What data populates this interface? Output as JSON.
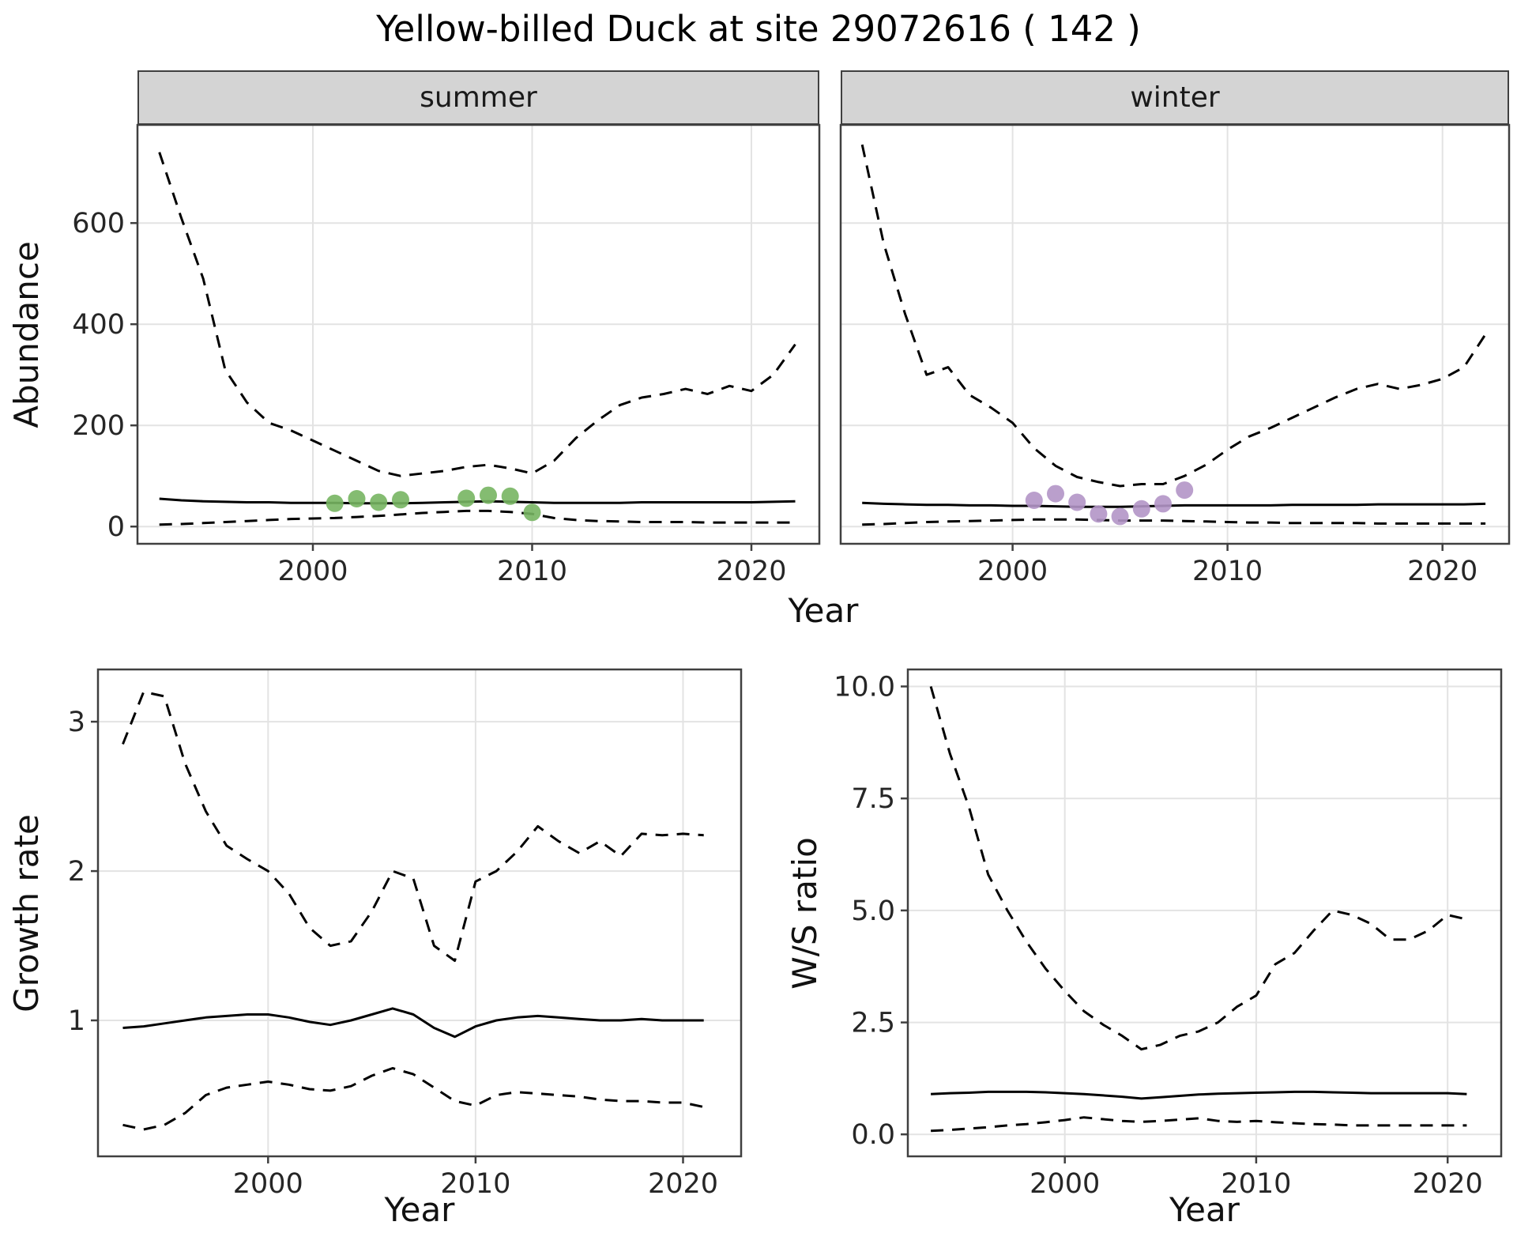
{
  "title": "Yellow-billed Duck at site 29072616 ( 142 )",
  "top": {
    "y_label": "Abundance",
    "x_label": "Year",
    "facets": [
      {
        "label": "summer"
      },
      {
        "label": "winter"
      }
    ]
  },
  "bottom_left": {
    "y_label": "Growth rate",
    "x_label": "Year"
  },
  "bottom_right": {
    "y_label": "W/S ratio",
    "x_label": "Year"
  },
  "colors": {
    "line": "#000000",
    "grid": "#e3e3e3",
    "panel_border": "#404040",
    "strip_bg": "#d4d4d4",
    "text": "#262626",
    "summer_points": "#77b562",
    "winter_points": "#b295c7"
  },
  "chart_data": [
    {
      "id": "abundance-summer",
      "type": "line",
      "facet": "summer",
      "title": "",
      "xlabel": "Year",
      "ylabel": "Abundance",
      "xlim": [
        1992,
        2023.1
      ],
      "ylim": [
        -34,
        794
      ],
      "grid": true,
      "x_ticks": [
        2000,
        2010,
        2020
      ],
      "x_tick_labels": [
        "2000",
        "2010",
        "2020"
      ],
      "y_ticks": [
        0,
        200,
        400,
        600
      ],
      "y_tick_labels": [
        "0",
        "200",
        "400",
        "600"
      ],
      "x": [
        1993,
        1994,
        1995,
        1996,
        1997,
        1998,
        1999,
        2000,
        2001,
        2002,
        2003,
        2004,
        2005,
        2006,
        2007,
        2008,
        2009,
        2010,
        2011,
        2012,
        2013,
        2014,
        2015,
        2016,
        2017,
        2018,
        2019,
        2020,
        2021,
        2022
      ],
      "series": [
        {
          "name": "upper-ci",
          "style": "dashed",
          "values": [
            740,
            610,
            490,
            310,
            245,
            205,
            190,
            170,
            150,
            130,
            110,
            100,
            105,
            110,
            118,
            122,
            115,
            105,
            130,
            175,
            210,
            240,
            255,
            262,
            272,
            262,
            278,
            268,
            300,
            360
          ]
        },
        {
          "name": "median",
          "style": "solid",
          "values": [
            55,
            52,
            50,
            49,
            48,
            48,
            47,
            47,
            47,
            46,
            46,
            46,
            47,
            48,
            49,
            50,
            49,
            48,
            47,
            47,
            47,
            47,
            48,
            48,
            48,
            48,
            48,
            48,
            49,
            50
          ]
        },
        {
          "name": "lower-ci",
          "style": "dashed",
          "values": [
            4,
            5,
            7,
            9,
            11,
            13,
            15,
            16,
            17,
            19,
            21,
            24,
            27,
            29,
            31,
            31,
            29,
            25,
            17,
            13,
            11,
            10,
            9,
            9,
            9,
            8,
            8,
            8,
            8,
            8
          ]
        }
      ],
      "points": {
        "name": "summer-count",
        "color": "#77b562",
        "x": [
          2001,
          2002,
          2003,
          2004,
          2007,
          2008,
          2009,
          2010
        ],
        "y": [
          46,
          55,
          48,
          53,
          56,
          62,
          60,
          28
        ]
      }
    },
    {
      "id": "abundance-winter",
      "type": "line",
      "facet": "winter",
      "title": "",
      "xlabel": "Year",
      "ylabel": "Abundance",
      "xlim": [
        1992,
        2023.1
      ],
      "ylim": [
        -34,
        794
      ],
      "grid": true,
      "x_ticks": [
        2000,
        2010,
        2020
      ],
      "x_tick_labels": [
        "2000",
        "2010",
        "2020"
      ],
      "y_ticks": [
        0,
        200,
        400,
        600
      ],
      "y_tick_labels": [
        "0",
        "200",
        "400",
        "600"
      ],
      "x": [
        1993,
        1994,
        1995,
        1996,
        1997,
        1998,
        1999,
        2000,
        2001,
        2002,
        2003,
        2004,
        2005,
        2006,
        2007,
        2008,
        2009,
        2010,
        2011,
        2012,
        2013,
        2014,
        2015,
        2016,
        2017,
        2018,
        2019,
        2020,
        2021,
        2022
      ],
      "series": [
        {
          "name": "upper-ci",
          "style": "dashed",
          "values": [
            755,
            560,
            420,
            300,
            315,
            260,
            235,
            205,
            155,
            120,
            98,
            88,
            80,
            84,
            84,
            100,
            122,
            152,
            178,
            195,
            215,
            235,
            255,
            272,
            282,
            272,
            280,
            292,
            315,
            380
          ]
        },
        {
          "name": "median",
          "style": "solid",
          "values": [
            47,
            45,
            44,
            43,
            43,
            42,
            42,
            41,
            41,
            40,
            39,
            39,
            39,
            40,
            41,
            42,
            42,
            42,
            42,
            42,
            43,
            43,
            43,
            43,
            44,
            44,
            44,
            44,
            44,
            45
          ]
        },
        {
          "name": "lower-ci",
          "style": "dashed",
          "values": [
            4,
            5,
            7,
            9,
            10,
            11,
            12,
            13,
            14,
            14,
            14,
            13,
            12,
            12,
            12,
            11,
            10,
            9,
            8,
            8,
            7,
            7,
            7,
            7,
            6,
            6,
            6,
            6,
            6,
            6
          ]
        }
      ],
      "points": {
        "name": "winter-count",
        "color": "#b295c7",
        "x": [
          2001,
          2002,
          2003,
          2004,
          2005,
          2006,
          2007,
          2008
        ],
        "y": [
          52,
          65,
          48,
          25,
          20,
          35,
          45,
          72
        ]
      }
    },
    {
      "id": "growth-rate",
      "type": "line",
      "title": "",
      "xlabel": "Year",
      "ylabel": "Growth rate",
      "xlim": [
        1991.8,
        2022.8
      ],
      "ylim": [
        0.09,
        3.35
      ],
      "grid": true,
      "x_ticks": [
        2000,
        2010,
        2020
      ],
      "x_tick_labels": [
        "2000",
        "2010",
        "2020"
      ],
      "y_ticks": [
        1,
        2,
        3
      ],
      "y_tick_labels": [
        "1",
        "2",
        "3"
      ],
      "x": [
        1993,
        1994,
        1995,
        1996,
        1997,
        1998,
        1999,
        2000,
        2001,
        2002,
        2003,
        2004,
        2005,
        2006,
        2007,
        2008,
        2009,
        2010,
        2011,
        2012,
        2013,
        2014,
        2015,
        2016,
        2017,
        2018,
        2019,
        2020,
        2021
      ],
      "series": [
        {
          "name": "upper-ci",
          "style": "dashed",
          "values": [
            2.85,
            3.2,
            3.17,
            2.72,
            2.4,
            2.17,
            2.08,
            2.0,
            1.85,
            1.62,
            1.5,
            1.53,
            1.73,
            2.0,
            1.95,
            1.5,
            1.4,
            1.93,
            2.0,
            2.13,
            2.3,
            2.2,
            2.12,
            2.2,
            2.1,
            2.25,
            2.24,
            2.25,
            2.24
          ]
        },
        {
          "name": "median",
          "style": "solid",
          "values": [
            0.95,
            0.96,
            0.98,
            1.0,
            1.02,
            1.03,
            1.04,
            1.04,
            1.02,
            0.99,
            0.97,
            1.0,
            1.04,
            1.08,
            1.04,
            0.95,
            0.89,
            0.96,
            1.0,
            1.02,
            1.03,
            1.02,
            1.01,
            1.0,
            1.0,
            1.01,
            1.0,
            1.0,
            1.0
          ]
        },
        {
          "name": "lower-ci",
          "style": "dashed",
          "values": [
            0.3,
            0.27,
            0.3,
            0.38,
            0.5,
            0.55,
            0.57,
            0.59,
            0.57,
            0.54,
            0.53,
            0.56,
            0.63,
            0.68,
            0.64,
            0.55,
            0.46,
            0.43,
            0.5,
            0.52,
            0.51,
            0.5,
            0.49,
            0.47,
            0.46,
            0.46,
            0.45,
            0.45,
            0.42
          ]
        }
      ]
    },
    {
      "id": "ws-ratio",
      "type": "line",
      "title": "",
      "xlabel": "Year",
      "ylabel": "W/S ratio",
      "xlim": [
        1991.8,
        2022.8
      ],
      "ylim": [
        -0.49,
        10.38
      ],
      "grid": true,
      "x_ticks": [
        2000,
        2010,
        2020
      ],
      "x_tick_labels": [
        "2000",
        "2010",
        "2020"
      ],
      "y_ticks": [
        0,
        2.5,
        5,
        7.5,
        10
      ],
      "y_tick_labels": [
        "0.0",
        "2.5",
        "5.0",
        "7.5",
        "10.0"
      ],
      "x": [
        1993,
        1994,
        1995,
        1996,
        1997,
        1998,
        1999,
        2000,
        2001,
        2002,
        2003,
        2004,
        2005,
        2006,
        2007,
        2008,
        2009,
        2010,
        2011,
        2012,
        2013,
        2014,
        2015,
        2016,
        2017,
        2018,
        2019,
        2020,
        2021
      ],
      "series": [
        {
          "name": "upper-ci",
          "style": "dashed",
          "values": [
            10.0,
            8.5,
            7.3,
            5.8,
            5.0,
            4.3,
            3.7,
            3.2,
            2.75,
            2.45,
            2.2,
            1.9,
            2.0,
            2.2,
            2.3,
            2.5,
            2.85,
            3.1,
            3.8,
            4.05,
            4.55,
            5.0,
            4.9,
            4.7,
            4.35,
            4.35,
            4.55,
            4.9,
            4.8
          ]
        },
        {
          "name": "median",
          "style": "solid",
          "values": [
            0.9,
            0.92,
            0.93,
            0.95,
            0.95,
            0.95,
            0.94,
            0.92,
            0.9,
            0.87,
            0.84,
            0.8,
            0.83,
            0.86,
            0.89,
            0.91,
            0.92,
            0.93,
            0.94,
            0.95,
            0.95,
            0.94,
            0.93,
            0.92,
            0.92,
            0.92,
            0.92,
            0.92,
            0.9
          ]
        },
        {
          "name": "lower-ci",
          "style": "dashed",
          "values": [
            0.08,
            0.1,
            0.13,
            0.16,
            0.2,
            0.23,
            0.27,
            0.32,
            0.38,
            0.34,
            0.3,
            0.28,
            0.3,
            0.33,
            0.36,
            0.3,
            0.28,
            0.3,
            0.27,
            0.25,
            0.23,
            0.22,
            0.2,
            0.2,
            0.2,
            0.2,
            0.2,
            0.2,
            0.2
          ]
        }
      ]
    }
  ]
}
